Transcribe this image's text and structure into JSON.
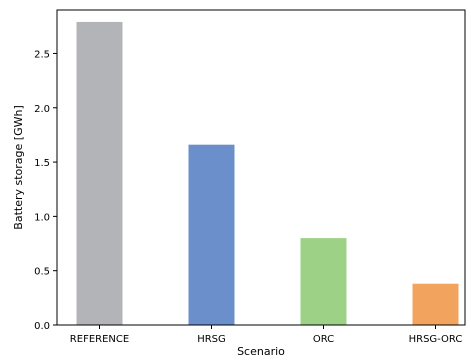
{
  "chart_data": {
    "type": "bar",
    "title": "",
    "xlabel": "Scenario",
    "ylabel": "Battery storage [GWh]",
    "categories": [
      "REFERENCE",
      "HRSG",
      "ORC",
      "HRSG-ORC"
    ],
    "values": [
      2.79,
      1.66,
      0.8,
      0.38
    ],
    "colors": [
      "#b3b4b8",
      "#6b8fca",
      "#9dd185",
      "#f2a35e"
    ],
    "ylim": [
      0,
      2.9
    ],
    "yticks": [
      0.0,
      0.5,
      1.0,
      1.5,
      2.0,
      2.5
    ],
    "ytick_labels": [
      "0.0",
      "0.5",
      "1.0",
      "1.5",
      "2.0",
      "2.5"
    ],
    "grid": false,
    "legend": "none"
  }
}
